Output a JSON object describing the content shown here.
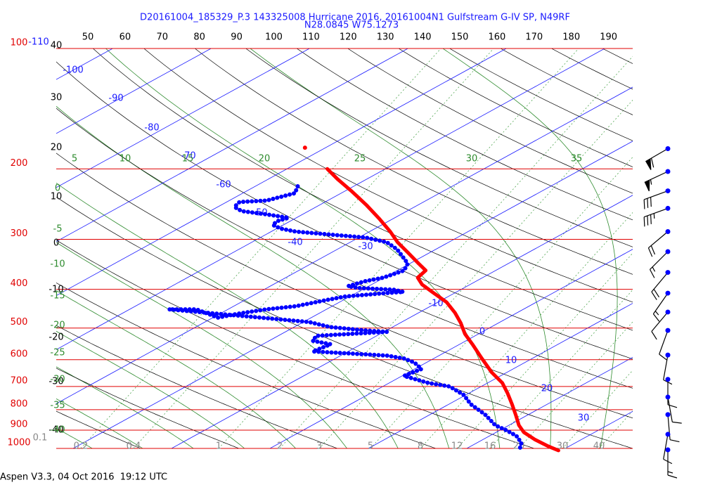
{
  "chart_data": {
    "type": "skewt",
    "title": "D20161004_185329_P.3 143325008 Hurricane 2016, 20161004N1 Gulfstream G-IV SP, N49RF",
    "subtitle": "N28.0845 W75.1273",
    "footer": "Aspen V3.3, 04 Oct 2016  19:12 UTC",
    "log_y": true,
    "grid": true,
    "ylim": [
      1000,
      100
    ],
    "yticks": [
      100,
      200,
      300,
      400,
      500,
      600,
      700,
      800,
      900,
      1000
    ],
    "xlim": [
      41.5,
      196.5
    ],
    "xticks": [
      50,
      60,
      70,
      80,
      90,
      100,
      110,
      120,
      130,
      140,
      150,
      160,
      170,
      180,
      190
    ],
    "isotherm_labels": [
      -110,
      -100,
      -90,
      -80,
      -70,
      -60,
      -50,
      -40,
      -30,
      -10,
      0,
      10,
      20,
      30
    ],
    "dry_adiabat_labels": [
      40,
      30,
      20,
      10,
      0,
      -10,
      -20,
      -30,
      -40
    ],
    "moist_adiabat_labels_top": [
      5,
      10,
      15,
      20,
      25,
      30,
      35
    ],
    "moist_adiabat_labels_left": [
      0,
      -5,
      -10,
      -15,
      -20,
      -25,
      -30,
      -35,
      -40
    ],
    "mixing_ratio_labels": [
      0.1,
      0.2,
      0.4,
      1,
      2,
      3,
      5,
      8,
      12,
      16,
      20,
      30,
      40
    ],
    "series": [
      {
        "color": "#ff0000",
        "style": "line",
        "y": [
          200,
          212,
          227,
          246,
          267,
          287,
          305,
          324,
          345,
          359,
          374,
          389,
          406,
          431,
          458,
          486,
          517,
          549,
          596,
          646,
          686,
          729,
          775,
          823,
          875,
          911,
          949,
          988,
          1012
        ],
        "values": [
          -45.9,
          -43.0,
          -39.4,
          -35.3,
          -31.3,
          -27.9,
          -25.2,
          -22.2,
          -19.1,
          -17.1,
          -16.6,
          -14.9,
          -12.5,
          -9.1,
          -6.3,
          -3.8,
          -1.4,
          1.3,
          4.9,
          8.5,
          11.5,
          14.0,
          16.4,
          18.7,
          21.0,
          22.8,
          25.2,
          27.9,
          29.7
        ]
      },
      {
        "color": "#0000ff",
        "style": "dotted",
        "y": [
          221,
          230,
          240,
          242,
          249,
          255,
          260,
          265,
          270,
          276,
          282,
          287,
          293,
          297,
          305,
          318,
          345,
          359,
          374,
          382,
          393,
          397,
          401,
          406,
          410,
          417,
          427,
          441,
          449,
          460,
          471,
          449,
          449,
          483,
          497,
          507,
          511,
          523,
          538,
          549,
          572,
          579,
          586,
          596,
          610,
          633,
          659,
          686,
          700,
          735,
          775,
          823,
          875,
          900,
          930,
          968,
          1000
        ],
        "values": [
          -45.7,
          -44.7,
          -46.2,
          -48.7,
          -48.3,
          -46.8,
          -43.6,
          -40.8,
          -41.3,
          -41.1,
          -39.6,
          -37.5,
          -32.6,
          -29.3,
          -26.3,
          -23.9,
          -20.2,
          -19.3,
          -20.1,
          -21.3,
          -22.1,
          -20.7,
          -16.8,
          -15.4,
          -17.5,
          -20.5,
          -21.9,
          -23.7,
          -26.1,
          -28.1,
          -29.5,
          -33.2,
          -36.0,
          -19.4,
          -16.4,
          -12.2,
          -9.7,
          -16.1,
          -15.6,
          -13.1,
          -13.6,
          -9.3,
          -5.3,
          -3.0,
          -1.2,
          0.7,
          0.2,
          4.0,
          6.8,
          9.8,
          12.2,
          15.6,
          18.6,
          20.6,
          22.7,
          24.5,
          25.4
        ]
      },
      {
        "color": "#ff0000",
        "style": "dot",
        "y": [
          177
        ],
        "values": [
          -52.1
        ]
      }
    ],
    "winds": {
      "pressure": [
        178,
        203,
        227,
        251,
        287,
        322,
        363,
        409,
        456,
        507,
        584,
        672,
        744,
        823,
        922,
        1008
      ],
      "direction": [
        240,
        245,
        250,
        250,
        230,
        225,
        220,
        215,
        220,
        200,
        190,
        180,
        170,
        175,
        190,
        180
      ],
      "speed": [
        60,
        55,
        30,
        35,
        20,
        15,
        20,
        15,
        10,
        10,
        10,
        10,
        10,
        10,
        10,
        15
      ],
      "color": "#0000ff"
    }
  }
}
